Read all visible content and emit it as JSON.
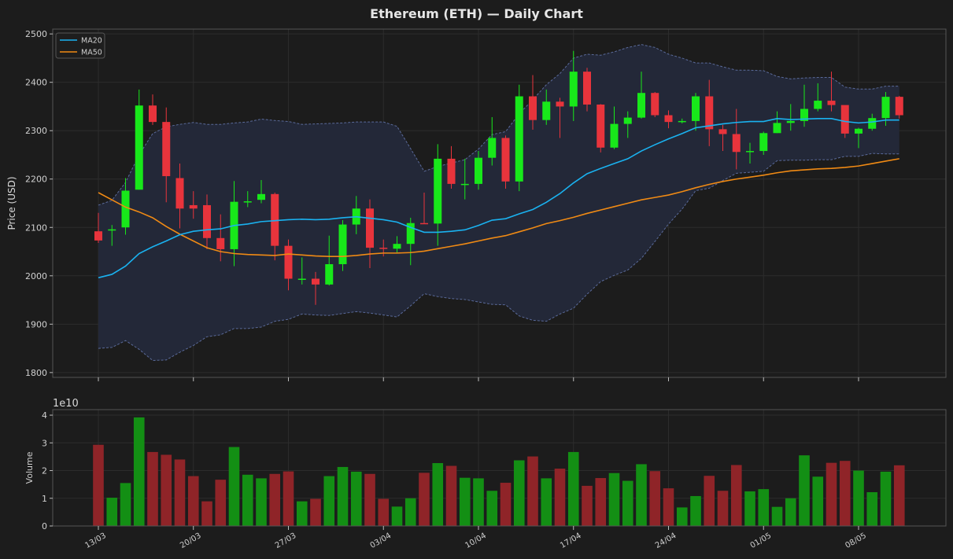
{
  "title": "Ethereum (ETH) — Daily Chart",
  "colors": {
    "up": "#18e81a",
    "down": "#e8343c",
    "ma20": "#1ab2f0",
    "ma50": "#f08a14",
    "vol_up": "#138f14",
    "vol_down": "#8f2428",
    "band_line": "#5a6a9a",
    "band_fill": "#232838"
  },
  "chart_data": [
    {
      "type": "candlestick",
      "ylabel": "Price (USD)",
      "ylim": [
        1790,
        2510
      ],
      "yticks": [
        1800,
        1900,
        2000,
        2100,
        2200,
        2300,
        2400,
        2500
      ],
      "grid": true,
      "legend": {
        "position": "top-left",
        "entries": [
          "MA20",
          "MA50"
        ]
      },
      "x_tick_labels": [
        {
          "index": 0,
          "label": "13/03"
        },
        {
          "index": 7,
          "label": "20/03"
        },
        {
          "index": 14,
          "label": "27/03"
        },
        {
          "index": 21,
          "label": "03/04"
        },
        {
          "index": 28,
          "label": "10/04"
        },
        {
          "index": 35,
          "label": "17/04"
        },
        {
          "index": 42,
          "label": "24/04"
        },
        {
          "index": 49,
          "label": "01/05"
        },
        {
          "index": 56,
          "label": "08/05"
        }
      ],
      "candles": [
        [
          2092,
          2073,
          2130,
          2068
        ],
        [
          2096,
          2096,
          2105,
          2062
        ],
        [
          2100,
          2176,
          2202,
          2085
        ],
        [
          2178,
          2352,
          2385,
          2178
        ],
        [
          2352,
          2318,
          2375,
          2312
        ],
        [
          2318,
          2206,
          2348,
          2152
        ],
        [
          2202,
          2139,
          2232,
          2098
        ],
        [
          2146,
          2139,
          2175,
          2118
        ],
        [
          2146,
          2078,
          2168,
          2055
        ],
        [
          2078,
          2055,
          2127,
          2030
        ],
        [
          2055,
          2153,
          2196,
          2020
        ],
        [
          2153,
          2154,
          2175,
          2142
        ],
        [
          2157,
          2169,
          2198,
          2150
        ],
        [
          2169,
          2062,
          2172,
          2032
        ],
        [
          2062,
          1994,
          2075,
          1970
        ],
        [
          1994,
          1994,
          2038,
          1982
        ],
        [
          1994,
          1982,
          2008,
          1940
        ],
        [
          1982,
          2024,
          2083,
          1980
        ],
        [
          2024,
          2106,
          2115,
          2010
        ],
        [
          2106,
          2139,
          2165,
          2086
        ],
        [
          2139,
          2058,
          2158,
          2016
        ],
        [
          2058,
          2056,
          2075,
          2040
        ],
        [
          2056,
          2066,
          2082,
          2048
        ],
        [
          2066,
          2109,
          2120,
          2022
        ],
        [
          2109,
          2108,
          2172,
          2108
        ],
        [
          2108,
          2242,
          2272,
          2062
        ],
        [
          2242,
          2190,
          2268,
          2180
        ],
        [
          2190,
          2190,
          2242,
          2158
        ],
        [
          2190,
          2244,
          2258,
          2178
        ],
        [
          2244,
          2285,
          2328,
          2228
        ],
        [
          2285,
          2195,
          2290,
          2180
        ],
        [
          2195,
          2371,
          2395,
          2175
        ],
        [
          2371,
          2322,
          2415,
          2302
        ],
        [
          2322,
          2360,
          2385,
          2312
        ],
        [
          2360,
          2350,
          2368,
          2285
        ],
        [
          2350,
          2422,
          2465,
          2320
        ],
        [
          2422,
          2354,
          2430,
          2340
        ],
        [
          2354,
          2265,
          2355,
          2255
        ],
        [
          2265,
          2314,
          2350,
          2262
        ],
        [
          2314,
          2327,
          2340,
          2285
        ],
        [
          2327,
          2378,
          2422,
          2325
        ],
        [
          2378,
          2332,
          2380,
          2328
        ],
        [
          2332,
          2318,
          2342,
          2305
        ],
        [
          2318,
          2320,
          2325,
          2315
        ],
        [
          2320,
          2371,
          2378,
          2300
        ],
        [
          2371,
          2303,
          2405,
          2268
        ],
        [
          2303,
          2293,
          2312,
          2258
        ],
        [
          2293,
          2256,
          2345,
          2220
        ],
        [
          2256,
          2258,
          2275,
          2232
        ],
        [
          2258,
          2295,
          2298,
          2250
        ],
        [
          2295,
          2316,
          2340,
          2295
        ],
        [
          2316,
          2320,
          2355,
          2300
        ],
        [
          2320,
          2345,
          2395,
          2308
        ],
        [
          2345,
          2362,
          2398,
          2340
        ],
        [
          2362,
          2353,
          2422,
          2340
        ],
        [
          2353,
          2294,
          2352,
          2285
        ],
        [
          2294,
          2304,
          2306,
          2264
        ],
        [
          2304,
          2326,
          2335,
          2300
        ],
        [
          2326,
          2370,
          2380,
          2310
        ],
        [
          2370,
          2332,
          2372,
          2325
        ]
      ],
      "ma20": [
        [
          0,
          1996
        ],
        [
          1,
          2003
        ],
        [
          2,
          2020
        ],
        [
          3,
          2046
        ],
        [
          4,
          2060
        ],
        [
          5,
          2072
        ],
        [
          6,
          2085
        ],
        [
          7,
          2092
        ],
        [
          8,
          2095
        ],
        [
          9,
          2097
        ],
        [
          10,
          2104
        ],
        [
          11,
          2107
        ],
        [
          12,
          2112
        ],
        [
          13,
          2114
        ],
        [
          14,
          2116
        ],
        [
          15,
          2117
        ],
        [
          16,
          2116
        ],
        [
          17,
          2117
        ],
        [
          18,
          2120
        ],
        [
          19,
          2122
        ],
        [
          20,
          2119
        ],
        [
          21,
          2116
        ],
        [
          22,
          2111
        ],
        [
          23,
          2100
        ],
        [
          24,
          2090
        ],
        [
          25,
          2090
        ],
        [
          26,
          2092
        ],
        [
          27,
          2095
        ],
        [
          28,
          2104
        ],
        [
          29,
          2115
        ],
        [
          30,
          2118
        ],
        [
          31,
          2128
        ],
        [
          32,
          2137
        ],
        [
          33,
          2152
        ],
        [
          34,
          2170
        ],
        [
          35,
          2192
        ],
        [
          36,
          2211
        ],
        [
          37,
          2222
        ],
        [
          38,
          2232
        ],
        [
          39,
          2242
        ],
        [
          40,
          2258
        ],
        [
          41,
          2271
        ],
        [
          42,
          2283
        ],
        [
          43,
          2294
        ],
        [
          44,
          2306
        ],
        [
          45,
          2310
        ],
        [
          46,
          2314
        ],
        [
          47,
          2317
        ],
        [
          48,
          2319
        ],
        [
          49,
          2319
        ],
        [
          50,
          2325
        ],
        [
          51,
          2323
        ],
        [
          52,
          2324
        ],
        [
          53,
          2325
        ],
        [
          54,
          2325
        ],
        [
          55,
          2319
        ],
        [
          56,
          2316
        ],
        [
          57,
          2318
        ],
        [
          58,
          2322
        ],
        [
          59,
          2322
        ]
      ],
      "ma50": [
        [
          0,
          2172
        ],
        [
          1,
          2157
        ],
        [
          2,
          2142
        ],
        [
          3,
          2132
        ],
        [
          4,
          2120
        ],
        [
          5,
          2102
        ],
        [
          6,
          2086
        ],
        [
          7,
          2072
        ],
        [
          8,
          2058
        ],
        [
          9,
          2050
        ],
        [
          10,
          2046
        ],
        [
          11,
          2044
        ],
        [
          12,
          2043
        ],
        [
          13,
          2042
        ],
        [
          14,
          2045
        ],
        [
          15,
          2043
        ],
        [
          16,
          2041
        ],
        [
          17,
          2040
        ],
        [
          18,
          2040
        ],
        [
          19,
          2042
        ],
        [
          20,
          2045
        ],
        [
          21,
          2047
        ],
        [
          22,
          2047
        ],
        [
          23,
          2048
        ],
        [
          24,
          2051
        ],
        [
          25,
          2056
        ],
        [
          26,
          2061
        ],
        [
          27,
          2066
        ],
        [
          28,
          2072
        ],
        [
          29,
          2078
        ],
        [
          30,
          2083
        ],
        [
          31,
          2091
        ],
        [
          32,
          2099
        ],
        [
          33,
          2108
        ],
        [
          34,
          2114
        ],
        [
          35,
          2121
        ],
        [
          36,
          2129
        ],
        [
          37,
          2136
        ],
        [
          38,
          2143
        ],
        [
          39,
          2150
        ],
        [
          40,
          2157
        ],
        [
          41,
          2162
        ],
        [
          42,
          2167
        ],
        [
          43,
          2174
        ],
        [
          44,
          2182
        ],
        [
          45,
          2189
        ],
        [
          46,
          2195
        ],
        [
          47,
          2200
        ],
        [
          48,
          2204
        ],
        [
          49,
          2208
        ],
        [
          50,
          2213
        ],
        [
          51,
          2217
        ],
        [
          52,
          2219
        ],
        [
          53,
          2221
        ],
        [
          54,
          2222
        ],
        [
          55,
          2224
        ],
        [
          56,
          2227
        ],
        [
          57,
          2232
        ],
        [
          58,
          2237
        ],
        [
          59,
          2242
        ]
      ],
      "bb_upper": [
        [
          0,
          2146
        ],
        [
          1,
          2156
        ],
        [
          2,
          2193
        ],
        [
          3,
          2250
        ],
        [
          4,
          2294
        ],
        [
          5,
          2308
        ],
        [
          6,
          2313
        ],
        [
          7,
          2317
        ],
        [
          8,
          2313
        ],
        [
          9,
          2313
        ],
        [
          10,
          2316
        ],
        [
          11,
          2318
        ],
        [
          12,
          2324
        ],
        [
          13,
          2321
        ],
        [
          14,
          2319
        ],
        [
          15,
          2313
        ],
        [
          16,
          2314
        ],
        [
          17,
          2315
        ],
        [
          18,
          2316
        ],
        [
          19,
          2318
        ],
        [
          20,
          2318
        ],
        [
          21,
          2318
        ],
        [
          22,
          2309
        ],
        [
          23,
          2263
        ],
        [
          24,
          2216
        ],
        [
          25,
          2226
        ],
        [
          26,
          2233
        ],
        [
          27,
          2240
        ],
        [
          28,
          2262
        ],
        [
          29,
          2292
        ],
        [
          30,
          2298
        ],
        [
          31,
          2335
        ],
        [
          32,
          2364
        ],
        [
          33,
          2395
        ],
        [
          34,
          2418
        ],
        [
          35,
          2450
        ],
        [
          36,
          2458
        ],
        [
          37,
          2456
        ],
        [
          38,
          2463
        ],
        [
          39,
          2472
        ],
        [
          40,
          2478
        ],
        [
          41,
          2472
        ],
        [
          42,
          2458
        ],
        [
          43,
          2450
        ],
        [
          44,
          2440
        ],
        [
          45,
          2440
        ],
        [
          46,
          2432
        ],
        [
          47,
          2425
        ],
        [
          48,
          2425
        ],
        [
          49,
          2424
        ],
        [
          50,
          2412
        ],
        [
          51,
          2407
        ],
        [
          52,
          2409
        ],
        [
          53,
          2410
        ],
        [
          54,
          2410
        ],
        [
          55,
          2390
        ],
        [
          56,
          2386
        ],
        [
          57,
          2386
        ],
        [
          58,
          2392
        ],
        [
          59,
          2392
        ]
      ],
      "bb_lower": [
        [
          0,
          1850
        ],
        [
          1,
          1852
        ],
        [
          2,
          1866
        ],
        [
          3,
          1848
        ],
        [
          4,
          1825
        ],
        [
          5,
          1826
        ],
        [
          6,
          1842
        ],
        [
          7,
          1856
        ],
        [
          8,
          1874
        ],
        [
          9,
          1878
        ],
        [
          10,
          1891
        ],
        [
          11,
          1891
        ],
        [
          12,
          1894
        ],
        [
          13,
          1906
        ],
        [
          14,
          1910
        ],
        [
          15,
          1921
        ],
        [
          16,
          1919
        ],
        [
          17,
          1918
        ],
        [
          18,
          1922
        ],
        [
          19,
          1926
        ],
        [
          20,
          1923
        ],
        [
          21,
          1919
        ],
        [
          22,
          1915
        ],
        [
          23,
          1938
        ],
        [
          24,
          1963
        ],
        [
          25,
          1957
        ],
        [
          26,
          1953
        ],
        [
          27,
          1951
        ],
        [
          28,
          1946
        ],
        [
          29,
          1941
        ],
        [
          30,
          1940
        ],
        [
          31,
          1917
        ],
        [
          32,
          1908
        ],
        [
          33,
          1906
        ],
        [
          34,
          1921
        ],
        [
          35,
          1933
        ],
        [
          36,
          1962
        ],
        [
          37,
          1988
        ],
        [
          38,
          2001
        ],
        [
          39,
          2012
        ],
        [
          40,
          2036
        ],
        [
          41,
          2071
        ],
        [
          42,
          2107
        ],
        [
          43,
          2138
        ],
        [
          44,
          2176
        ],
        [
          45,
          2181
        ],
        [
          46,
          2197
        ],
        [
          47,
          2212
        ],
        [
          48,
          2214
        ],
        [
          49,
          2216
        ],
        [
          50,
          2238
        ],
        [
          51,
          2239
        ],
        [
          52,
          2239
        ],
        [
          53,
          2240
        ],
        [
          54,
          2240
        ],
        [
          55,
          2247
        ],
        [
          56,
          2247
        ],
        [
          57,
          2253
        ],
        [
          58,
          2252
        ],
        [
          59,
          2252
        ]
      ]
    },
    {
      "type": "bar",
      "ylabel": "Volume",
      "offset_text": "1e10",
      "ylim": [
        0,
        4.2
      ],
      "yticks": [
        0,
        1,
        2,
        3,
        4
      ],
      "grid": true,
      "values": [
        2.93,
        1.02,
        1.55,
        3.92,
        2.67,
        2.57,
        2.4,
        1.8,
        0.89,
        1.67,
        2.85,
        1.85,
        1.72,
        1.88,
        1.97,
        0.89,
        0.98,
        1.8,
        2.13,
        1.96,
        1.88,
        0.98,
        0.7,
        1.0,
        1.92,
        2.27,
        2.17,
        1.74,
        1.72,
        1.27,
        1.56,
        2.37,
        2.51,
        1.72,
        2.07,
        2.67,
        1.45,
        1.73,
        1.91,
        1.63,
        2.23,
        1.98,
        1.36,
        0.67,
        1.08,
        1.81,
        1.27,
        2.2,
        1.25,
        1.33,
        0.69,
        1.0,
        2.55,
        1.78,
        2.28,
        2.35,
        2.0,
        1.22,
        1.96,
        2.19
      ]
    }
  ]
}
